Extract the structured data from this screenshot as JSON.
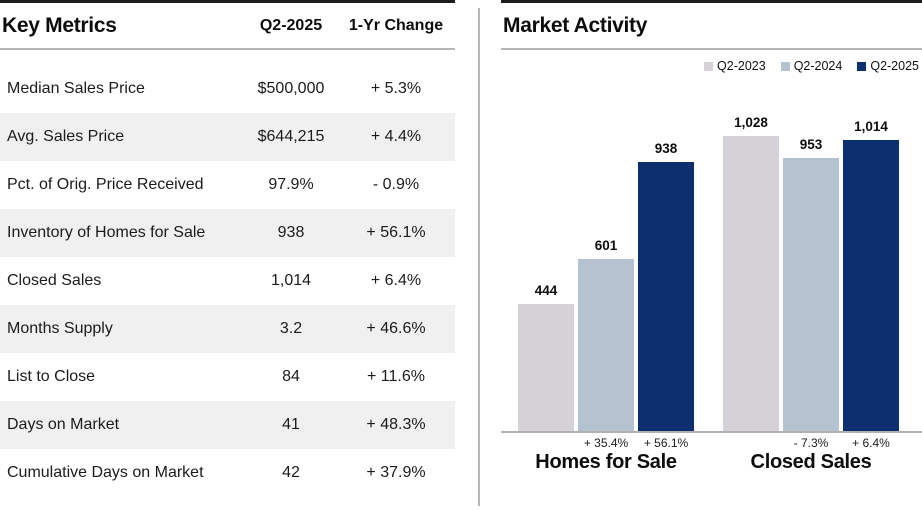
{
  "left_panel": {
    "title": "Key Metrics",
    "col_value": "Q2-2025",
    "col_change": "1-Yr Change",
    "rows": [
      {
        "label": "Median Sales Price",
        "value": "$500,000",
        "change": "+ 5.3%"
      },
      {
        "label": "Avg. Sales Price",
        "value": "$644,215",
        "change": "+ 4.4%"
      },
      {
        "label": "Pct. of Orig. Price Received",
        "value": "97.9%",
        "change": "- 0.9%"
      },
      {
        "label": "Inventory of Homes for Sale",
        "value": "938",
        "change": "+ 56.1%"
      },
      {
        "label": "Closed Sales",
        "value": "1,014",
        "change": "+ 6.4%"
      },
      {
        "label": "Months Supply",
        "value": "3.2",
        "change": "+ 46.6%"
      },
      {
        "label": "List to Close",
        "value": "84",
        "change": "+ 11.6%"
      },
      {
        "label": "Days on Market",
        "value": "41",
        "change": "+ 48.3%"
      },
      {
        "label": "Cumulative Days on Market",
        "value": "42",
        "change": "+ 37.9%"
      }
    ]
  },
  "right_panel": {
    "title": "Market Activity"
  },
  "chart_data": {
    "type": "bar",
    "title": "Market Activity",
    "categories": [
      "Homes for Sale",
      "Closed Sales"
    ],
    "series": [
      {
        "name": "Q2-2023",
        "color": "#D5D2D7",
        "values": [
          444,
          1028
        ],
        "labels": [
          "444",
          "1,028"
        ]
      },
      {
        "name": "Q2-2024",
        "color": "#B4C3CF",
        "values": [
          601,
          953
        ],
        "labels": [
          "601",
          "953"
        ]
      },
      {
        "name": "Q2-2025",
        "color": "#0C2F70",
        "values": [
          938,
          1014
        ],
        "labels": [
          "938",
          "1,014"
        ]
      }
    ],
    "change_labels": [
      [
        "",
        "+ 35.4%",
        "+ 56.1%"
      ],
      [
        "",
        "- 7.3%",
        "+ 6.4%"
      ]
    ],
    "ylim": [
      0,
      1028
    ],
    "grid": false,
    "legend_position": "top-right"
  },
  "colors": {
    "header_rule_dark": "#1c1c1c",
    "header_rule_light": "#b5b5b5",
    "row_alt_bg": "#f0f0f0",
    "axis": "#b0b0b0",
    "divider": "#b6b6b6"
  }
}
